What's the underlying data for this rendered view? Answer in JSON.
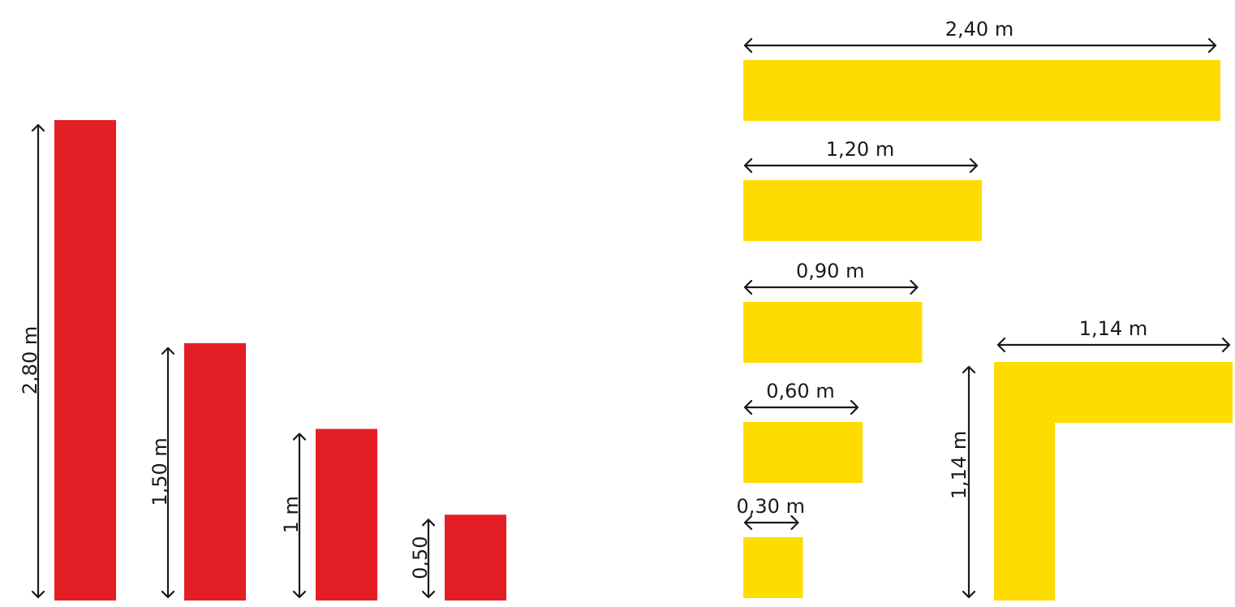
{
  "colors": {
    "red_bar": "#e31e24",
    "yellow_bar": "#ffdc00",
    "line": "#1a1a1a"
  },
  "left_group": {
    "bars": [
      {
        "label": "2,80 m",
        "value_m": 2.8
      },
      {
        "label": "1,50 m",
        "value_m": 1.5
      },
      {
        "label": "1 m",
        "value_m": 1.0
      },
      {
        "label": "0,50",
        "value_m": 0.5
      }
    ]
  },
  "right_group": {
    "bars": [
      {
        "label": "2,40 m",
        "value_m": 2.4
      },
      {
        "label": "1,20 m",
        "value_m": 1.2
      },
      {
        "label": "0,90 m",
        "value_m": 0.9
      },
      {
        "label": "0,60 m",
        "value_m": 0.6
      },
      {
        "label": "0,30 m",
        "value_m": 0.3
      }
    ],
    "corner": {
      "width_label": "1,14 m",
      "height_label": "1,14 m",
      "width_m": 1.14,
      "height_m": 1.14
    }
  }
}
